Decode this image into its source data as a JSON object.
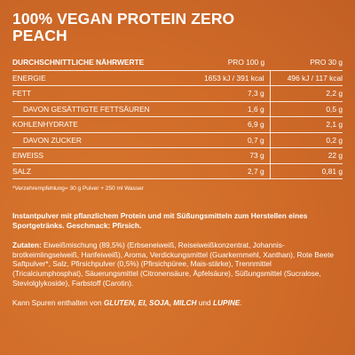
{
  "title": {
    "line1": "100% VEGAN PROTEIN ZERO",
    "line2": "PEACH"
  },
  "table": {
    "header": {
      "label": "DURCHSCHNITTLICHE NÄHRWERTE",
      "col1": "PRO 100 g",
      "col2": "PRO 30 g"
    },
    "rows": [
      {
        "label": "ENERGIE",
        "v100": "1653 kJ / 391 kcal",
        "v30": "496 kJ / 117 kcal"
      },
      {
        "label": "FETT",
        "v100": "7,3 g",
        "v30": "2,2 g"
      },
      {
        "label": "DAVON GESÄTTIGTE FETTSÄUREN",
        "v100": "1,6 g",
        "v30": "0,5 g"
      },
      {
        "label": "KOHLENHYDRATE",
        "v100": "6,9 g",
        "v30": "2,1 g"
      },
      {
        "label": "DAVON ZUCKER",
        "v100": "0,7 g",
        "v30": "0,2 g"
      },
      {
        "label": "EIWEISS",
        "v100": "73 g",
        "v30": "22 g"
      },
      {
        "label": "SALZ",
        "v100": "2,7 g",
        "v30": "0,81 g"
      }
    ]
  },
  "note": "*Verzehrempfehlung= 30 g Pulver + 250 ml Wasser",
  "description": "Instantpulver mit pflanzlichem Protein und mit Süßungsmitteln zum Herstellen eines Sportgetränks. Geschmack: Pfirsich.",
  "ingredients": {
    "label": "Zutaten:",
    "text": "Eiweißmischung (89,5%) (Erbseneiweiß, Reiseiweißkonzentrat, Johannis-brotkeimlingseiweiß, Hanfeiweiß), Aroma, Verdickungsmittel (Guarkernmehl, Xanthan), Rote Beete Saftpulver*, Salz, Pfirsichpulver (0,5%) (Pfirsichpüree, Mais-stärke), Trennmittel (Tricalciumphosphat), Säuerungsmittel (Citronensäure, Äpfelsäure), Süßungsmittel (Sucralose, Steviolglykoside), Farbstoff (Carotin)."
  },
  "traces": {
    "prefix": "Kann Spuren enthalten von ",
    "allergens": "GLUTEN, EI, SOJA, MILCH",
    "middle": " und ",
    "last": "LUPINE",
    "suffix": "."
  }
}
